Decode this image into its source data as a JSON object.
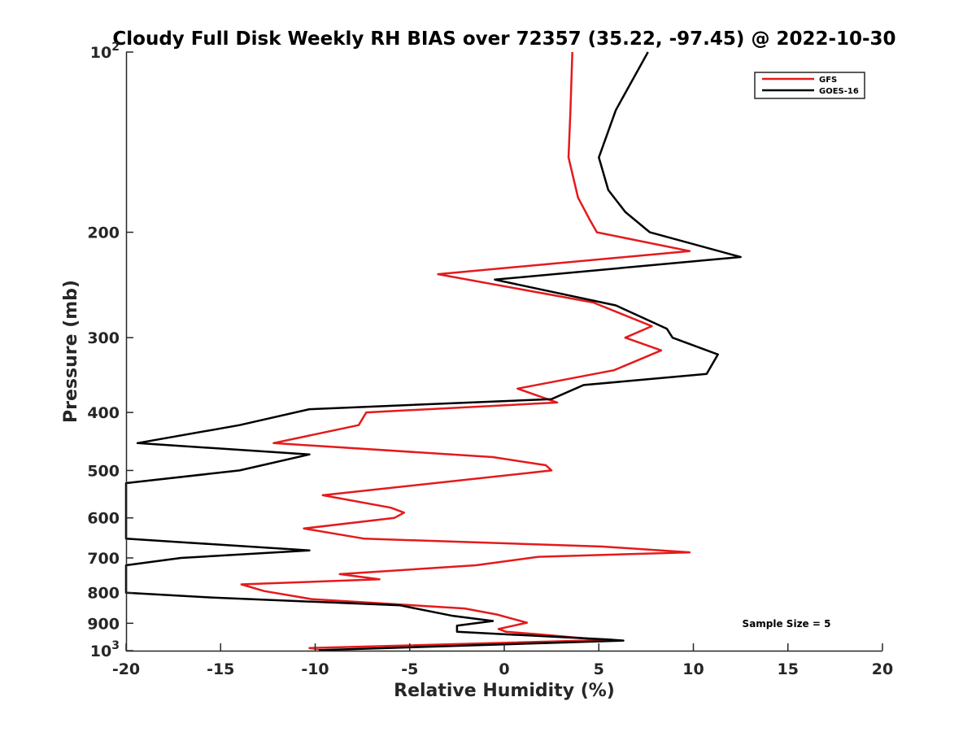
{
  "chart_data": {
    "type": "line",
    "title": "Cloudy Full Disk Weekly RH BIAS over 72357 (35.22, -97.45) @ 2022-10-30",
    "xlabel": "Relative Humidity (%)",
    "ylabel": "Pressure (mb)",
    "xlim": [
      -20,
      20
    ],
    "ylim": [
      100,
      1000
    ],
    "y_scale": "log",
    "y_reversed": true,
    "grid": false,
    "legend_position": "top-right",
    "annotation": "Sample Size = 5",
    "x_ticks": [
      -20,
      -15,
      -10,
      -5,
      0,
      5,
      10,
      15,
      20
    ],
    "x_tick_labels": [
      "-20",
      "-15",
      "-10",
      "-5",
      "0",
      "5",
      "10",
      "15",
      "20"
    ],
    "y_ticks": [
      100,
      200,
      300,
      400,
      500,
      600,
      700,
      800,
      900,
      1000
    ],
    "y_tick_labels": [
      {
        "base": "10",
        "exp": "2"
      },
      {
        "base": "200",
        "exp": ""
      },
      {
        "base": "300",
        "exp": ""
      },
      {
        "base": "400",
        "exp": ""
      },
      {
        "base": "500",
        "exp": ""
      },
      {
        "base": "600",
        "exp": ""
      },
      {
        "base": "700",
        "exp": ""
      },
      {
        "base": "800",
        "exp": ""
      },
      {
        "base": "900",
        "exp": ""
      },
      {
        "base": "10",
        "exp": "3"
      }
    ],
    "series": [
      {
        "name": "GFS",
        "color": "#e41a1c",
        "points": [
          [
            3.6,
            100
          ],
          [
            3.5,
            125
          ],
          [
            3.4,
            150
          ],
          [
            3.9,
            175
          ],
          [
            4.5,
            190
          ],
          [
            4.9,
            200
          ],
          [
            9.8,
            215
          ],
          [
            -3.5,
            235
          ],
          [
            4.7,
            262
          ],
          [
            7.8,
            287
          ],
          [
            6.4,
            300
          ],
          [
            8.3,
            315
          ],
          [
            5.8,
            340
          ],
          [
            0.7,
            365
          ],
          [
            2.8,
            385
          ],
          [
            -7.3,
            400
          ],
          [
            -7.7,
            420
          ],
          [
            -12.2,
            450
          ],
          [
            -0.6,
            475
          ],
          [
            2.2,
            490
          ],
          [
            2.5,
            500
          ],
          [
            -9.6,
            550
          ],
          [
            -6.0,
            577
          ],
          [
            -5.3,
            588
          ],
          [
            -5.8,
            600
          ],
          [
            -10.6,
            625
          ],
          [
            -7.4,
            650
          ],
          [
            5.2,
            670
          ],
          [
            9.8,
            685
          ],
          [
            1.8,
            697
          ],
          [
            -1.5,
            720
          ],
          [
            -8.7,
            745
          ],
          [
            -6.6,
            760
          ],
          [
            -13.9,
            775
          ],
          [
            -12.7,
            795
          ],
          [
            -10.2,
            820
          ],
          [
            -2.1,
            850
          ],
          [
            -0.4,
            870
          ],
          [
            1.2,
            898
          ],
          [
            -0.3,
            920
          ],
          [
            0.1,
            930
          ],
          [
            2.0,
            940
          ],
          [
            5.3,
            960
          ],
          [
            -10.3,
            990
          ],
          [
            -9.7,
            995
          ]
        ]
      },
      {
        "name": "GOES-16",
        "color": "#000000",
        "points": [
          [
            7.6,
            100
          ],
          [
            5.9,
            125
          ],
          [
            5.0,
            150
          ],
          [
            5.5,
            170
          ],
          [
            6.4,
            185
          ],
          [
            7.7,
            200
          ],
          [
            12.5,
            220
          ],
          [
            -0.5,
            240
          ],
          [
            5.9,
            265
          ],
          [
            8.6,
            290
          ],
          [
            8.9,
            300
          ],
          [
            11.3,
            320
          ],
          [
            10.7,
            345
          ],
          [
            4.2,
            360
          ],
          [
            2.5,
            380
          ],
          [
            -10.3,
            395
          ],
          [
            -14.0,
            420
          ],
          [
            -19.4,
            450
          ],
          [
            -10.3,
            470
          ],
          [
            -12.8,
            490
          ],
          [
            -14.0,
            500
          ],
          [
            -20.0,
            525
          ],
          [
            -20.0,
            650
          ],
          [
            -16.7,
            660
          ],
          [
            -10.3,
            680
          ],
          [
            -17.1,
            700
          ],
          [
            -20.0,
            720
          ],
          [
            -20.0,
            800
          ],
          [
            -15.5,
            815
          ],
          [
            -5.5,
            840
          ],
          [
            -2.7,
            875
          ],
          [
            -0.6,
            892
          ],
          [
            -2.5,
            908
          ],
          [
            -2.5,
            930
          ],
          [
            5.5,
            958
          ],
          [
            6.3,
            962
          ],
          [
            -9.8,
            998
          ]
        ]
      }
    ]
  }
}
